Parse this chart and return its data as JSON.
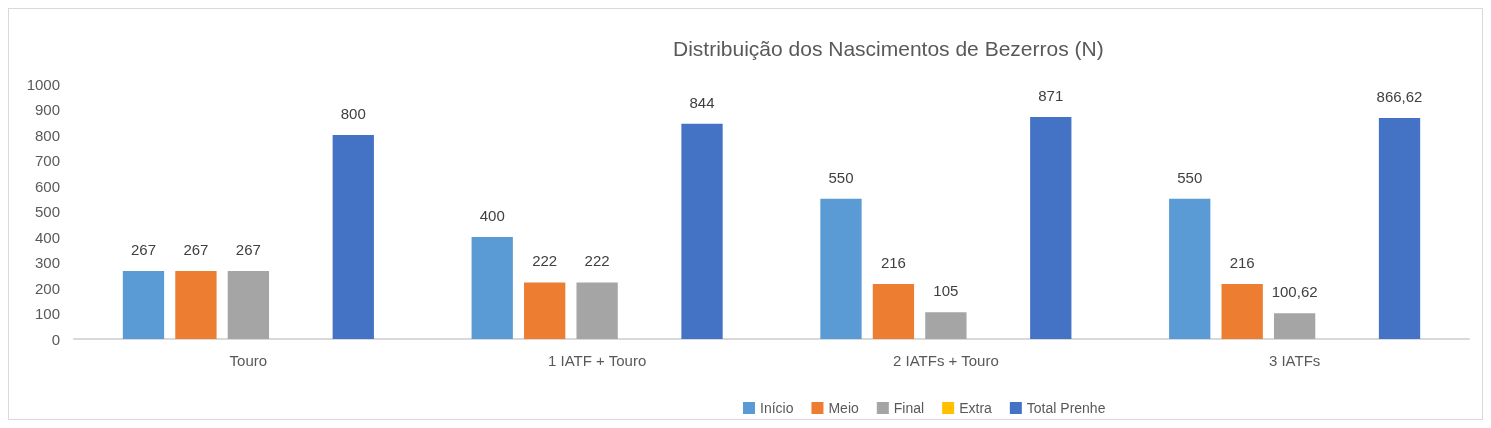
{
  "chart_data": {
    "type": "bar",
    "title": "Distribuição dos Nascimentos de Bezerros (N)",
    "categories": [
      "Touro",
      "1 IATF + Touro",
      "2 IATFs + Touro",
      "3 IATFs"
    ],
    "series": [
      {
        "name": "Início",
        "color": "#5b9bd5",
        "values": [
          267,
          400,
          550,
          550
        ],
        "value_labels": [
          "267",
          "400",
          "550",
          "550"
        ]
      },
      {
        "name": "Meio",
        "color": "#ed7d31",
        "values": [
          267,
          222,
          216,
          216
        ],
        "value_labels": [
          "267",
          "222",
          "216",
          "216"
        ]
      },
      {
        "name": "Final",
        "color": "#a5a5a5",
        "values": [
          267,
          222,
          105,
          100.62
        ],
        "value_labels": [
          "267",
          "222",
          "105",
          "100,62"
        ]
      },
      {
        "name": "Extra",
        "color": "#ffc000",
        "values": [
          null,
          null,
          null,
          null
        ]
      },
      {
        "name": "Total Prenhe",
        "color": "#4472c4",
        "values": [
          800,
          844,
          871,
          866.62
        ],
        "value_labels": [
          "800",
          "844",
          "871",
          "866,62"
        ]
      }
    ],
    "ylim": [
      0,
      1000
    ],
    "yticks": [
      0,
      100,
      200,
      300,
      400,
      500,
      600,
      700,
      800,
      900,
      1000
    ],
    "legend": "bottom"
  }
}
